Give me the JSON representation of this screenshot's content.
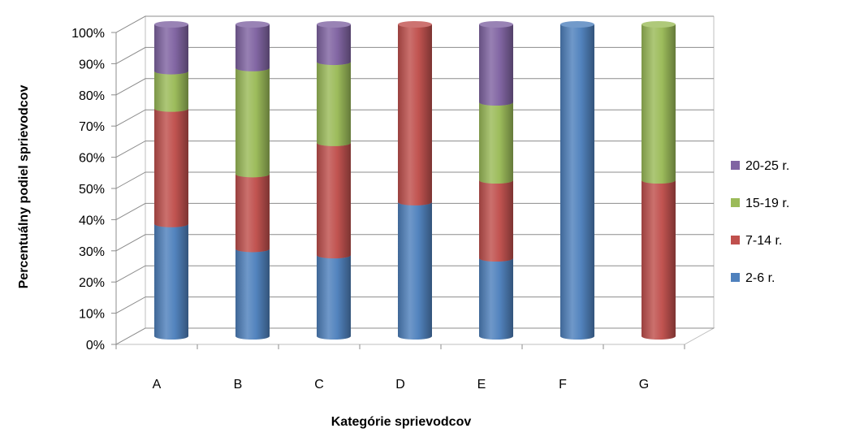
{
  "chart_data": {
    "type": "bar",
    "stacked": true,
    "percent_stacked": true,
    "style": "3d-cylinder",
    "xlabel": "Kategórie sprievodcov",
    "ylabel": "Percentuálny podiel sprievodcov",
    "categories": [
      "A",
      "B",
      "C",
      "D",
      "E",
      "F",
      "G"
    ],
    "ylim": [
      0,
      100
    ],
    "yticks": [
      "0%",
      "10%",
      "20%",
      "30%",
      "40%",
      "50%",
      "60%",
      "70%",
      "80%",
      "90%",
      "100%"
    ],
    "grid": true,
    "legend_position": "right",
    "series": [
      {
        "name": "2-6 r.",
        "color": "#4F81BD",
        "values": [
          36,
          28,
          26,
          43,
          25,
          100,
          0
        ]
      },
      {
        "name": "7-14 r.",
        "color": "#C0504D",
        "values": [
          37,
          24,
          36,
          57,
          25,
          0,
          50
        ]
      },
      {
        "name": "15-19 r.",
        "color": "#9BBB59",
        "values": [
          12,
          34,
          26,
          0,
          25,
          0,
          50
        ]
      },
      {
        "name": "20-25 r.",
        "color": "#8064A2",
        "values": [
          15,
          14,
          12,
          0,
          25,
          0,
          0
        ]
      }
    ]
  }
}
